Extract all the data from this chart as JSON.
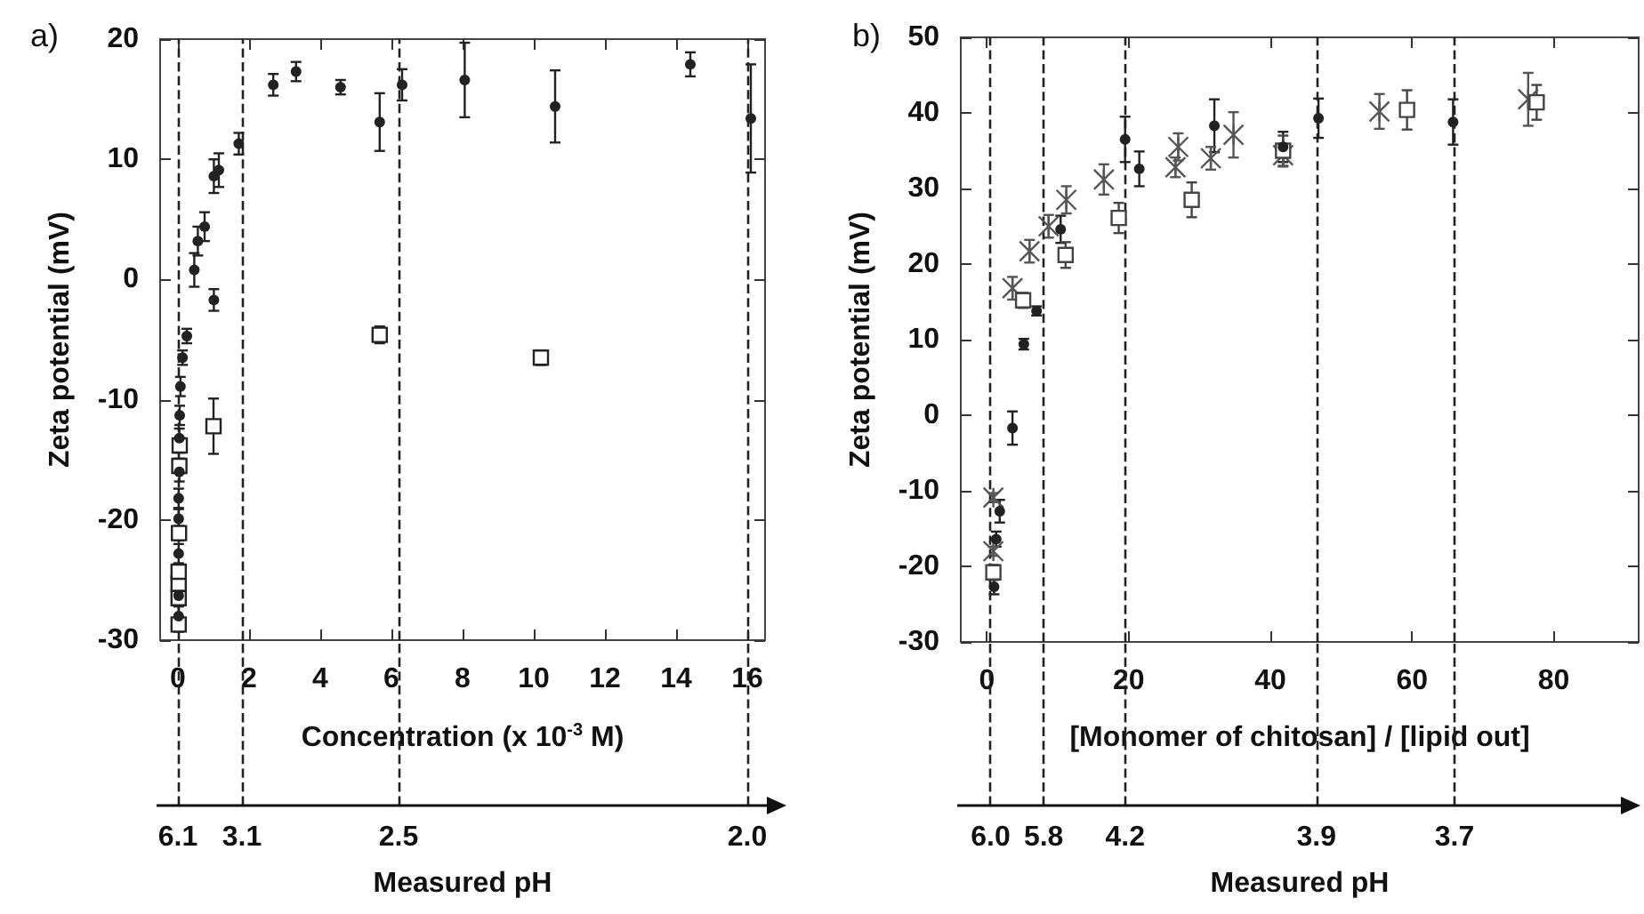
{
  "chart_data": [
    {
      "type": "scatter",
      "title": "a)",
      "xlabel": "Concentration (x 10$^{-3}$ M)",
      "ylabel": "Zeta potential (mV)",
      "xlim": [
        -0.5,
        16.5
      ],
      "xticks": [
        0,
        2,
        4,
        6,
        8,
        10,
        12,
        14,
        16
      ],
      "ylim": [
        -30,
        20
      ],
      "yticks": [
        -30,
        -20,
        -10,
        0,
        10,
        20
      ],
      "annotations": [
        {
          "text": "6.1",
          "x": 0
        },
        {
          "text": "3.1",
          "x": 1.8
        },
        {
          "text": "2.5",
          "x": 6.2
        },
        {
          "text": "2.0",
          "x": 16
        },
        "Measured pH"
      ],
      "series": [
        {
          "color": "#222222",
          "marker": "circle",
          "x": [
            0.02,
            0.02,
            0.02,
            0.02,
            0.02,
            0.04,
            0.04,
            0.05,
            0.07,
            0.13,
            0.25,
            0.46,
            0.56,
            0.75,
            1.01,
            1.01,
            1.15,
            1.71,
            2.68,
            3.32,
            4.57,
            5.67,
            6.3,
            8.06,
            10.6,
            14.4,
            16.1
          ],
          "values": [
            -28,
            -26.3,
            -22.8,
            -19.9,
            -18.2,
            -16,
            -13.2,
            -11.3,
            -8.9,
            -6.5,
            -4.7,
            0.8,
            3.2,
            4.4,
            -1.7,
            8.6,
            9.1,
            11.3,
            16.2,
            17.3,
            16,
            13.1,
            16.2,
            16.6,
            14.4,
            17.9,
            13.4
          ],
          "errors": [
            0.8,
            0.8,
            0.8,
            0.8,
            0.8,
            0.8,
            0.8,
            0.8,
            0.8,
            0.6,
            0.6,
            1.4,
            1.2,
            1.2,
            0.9,
            1.4,
            1.4,
            0.9,
            0.9,
            0.8,
            0.6,
            2.4,
            1.3,
            3.1,
            3,
            1,
            4.5
          ]
        },
        {
          "color": "#222222",
          "marker": "square",
          "x": [
            0.02,
            0.02,
            0.02,
            0.02,
            0.03,
            0.04,
            0.05,
            1.0,
            5.67,
            10.2
          ],
          "values": [
            -28.7,
            -26.5,
            -25.3,
            -24.3,
            -21.1,
            -15.5,
            -13.8,
            -12.2,
            -4.6,
            -6.5
          ],
          "errors": [
            0.6,
            0.6,
            0.6,
            0.6,
            0.6,
            0.6,
            0.6,
            2.3,
            0.7,
            0.6
          ]
        }
      ],
      "ref_lines": [
        {
          "axis": "x",
          "value": 0,
          "color": "#222222",
          "line_style": "dashed"
        },
        {
          "axis": "x",
          "value": 1.8,
          "color": "#222222",
          "line_style": "dashed"
        },
        {
          "axis": "x",
          "value": 6.2,
          "color": "#222222",
          "line_style": "dashed"
        },
        {
          "axis": "x",
          "value": 16,
          "color": "#222222",
          "line_style": "dashed"
        }
      ]
    },
    {
      "type": "scatter",
      "title": "b)",
      "xlabel": "[Monomer of chitosan] / [lipid out]",
      "ylabel": "Zeta potential (mV)",
      "xlim": [
        -3.7,
        92
      ],
      "xticks": [
        0,
        20,
        40,
        60,
        80
      ],
      "ylim": [
        -30,
        50
      ],
      "yticks": [
        -30,
        -20,
        -10,
        0,
        10,
        20,
        30,
        40,
        50
      ],
      "annotations": [
        {
          "text": "6.0",
          "x": 0.5
        },
        {
          "text": "5.8",
          "x": 8
        },
        {
          "text": "4.2",
          "x": 19.5
        },
        {
          "text": "3.9",
          "x": 46.5
        },
        {
          "text": "3.7",
          "x": 66
        },
        "Measured pH"
      ],
      "series": [
        {
          "color": "#222222",
          "marker": "circle",
          "x": [
            1.0,
            1.3,
            1.8,
            3.6,
            5.2,
            7.0,
            10.4,
            19.5,
            21.5,
            32.1,
            41.8,
            46.8,
            65.8
          ],
          "values": [
            -22.7,
            -16.4,
            -12.7,
            -1.7,
            9.4,
            13.8,
            24.6,
            36.5,
            32.6,
            38.3,
            35.5,
            39.3,
            38.8
          ],
          "errors": [
            1,
            1,
            1.5,
            2.2,
            0.7,
            0.6,
            1.8,
            3,
            2.3,
            3.5,
            2,
            2.6,
            3
          ]
        },
        {
          "color": "#444444",
          "marker": "square",
          "x": [
            0.9,
            5.1,
            11.1,
            18.6,
            28.9,
            41.8,
            59.3,
            77.6
          ],
          "values": [
            -20.8,
            15.2,
            21.2,
            26.1,
            28.5,
            35,
            40.4,
            41.4
          ],
          "errors": [
            1,
            1,
            1.7,
            2,
            2.3,
            2,
            2.6,
            2.3
          ]
        },
        {
          "color": "#555555",
          "marker": "cross",
          "x": [
            0.9,
            0.9,
            3.6,
            6.0,
            8.7,
            11.2,
            16.5,
            26.6,
            27.0,
            31.6,
            34.8,
            41.8,
            55.4,
            76.4
          ],
          "values": [
            -10.9,
            -18,
            16.8,
            21.7,
            25,
            28.5,
            31.2,
            32.8,
            35.5,
            34,
            37.1,
            34.4,
            40.2,
            41.8
          ],
          "errors": [
            0.6,
            0.6,
            1.5,
            1.5,
            1.5,
            1.8,
            2,
            1.3,
            1.8,
            1.5,
            3,
            1.5,
            2.3,
            3.5
          ]
        }
      ],
      "ref_lines": [
        {
          "axis": "x",
          "value": 0.5,
          "color": "#222222",
          "line_style": "dashed"
        },
        {
          "axis": "x",
          "value": 8,
          "color": "#222222",
          "line_style": "dashed"
        },
        {
          "axis": "x",
          "value": 19.5,
          "color": "#222222",
          "line_style": "dashed"
        },
        {
          "axis": "x",
          "value": 46.5,
          "color": "#222222",
          "line_style": "dashed"
        },
        {
          "axis": "x",
          "value": 66,
          "color": "#222222",
          "line_style": "dashed"
        }
      ]
    }
  ]
}
